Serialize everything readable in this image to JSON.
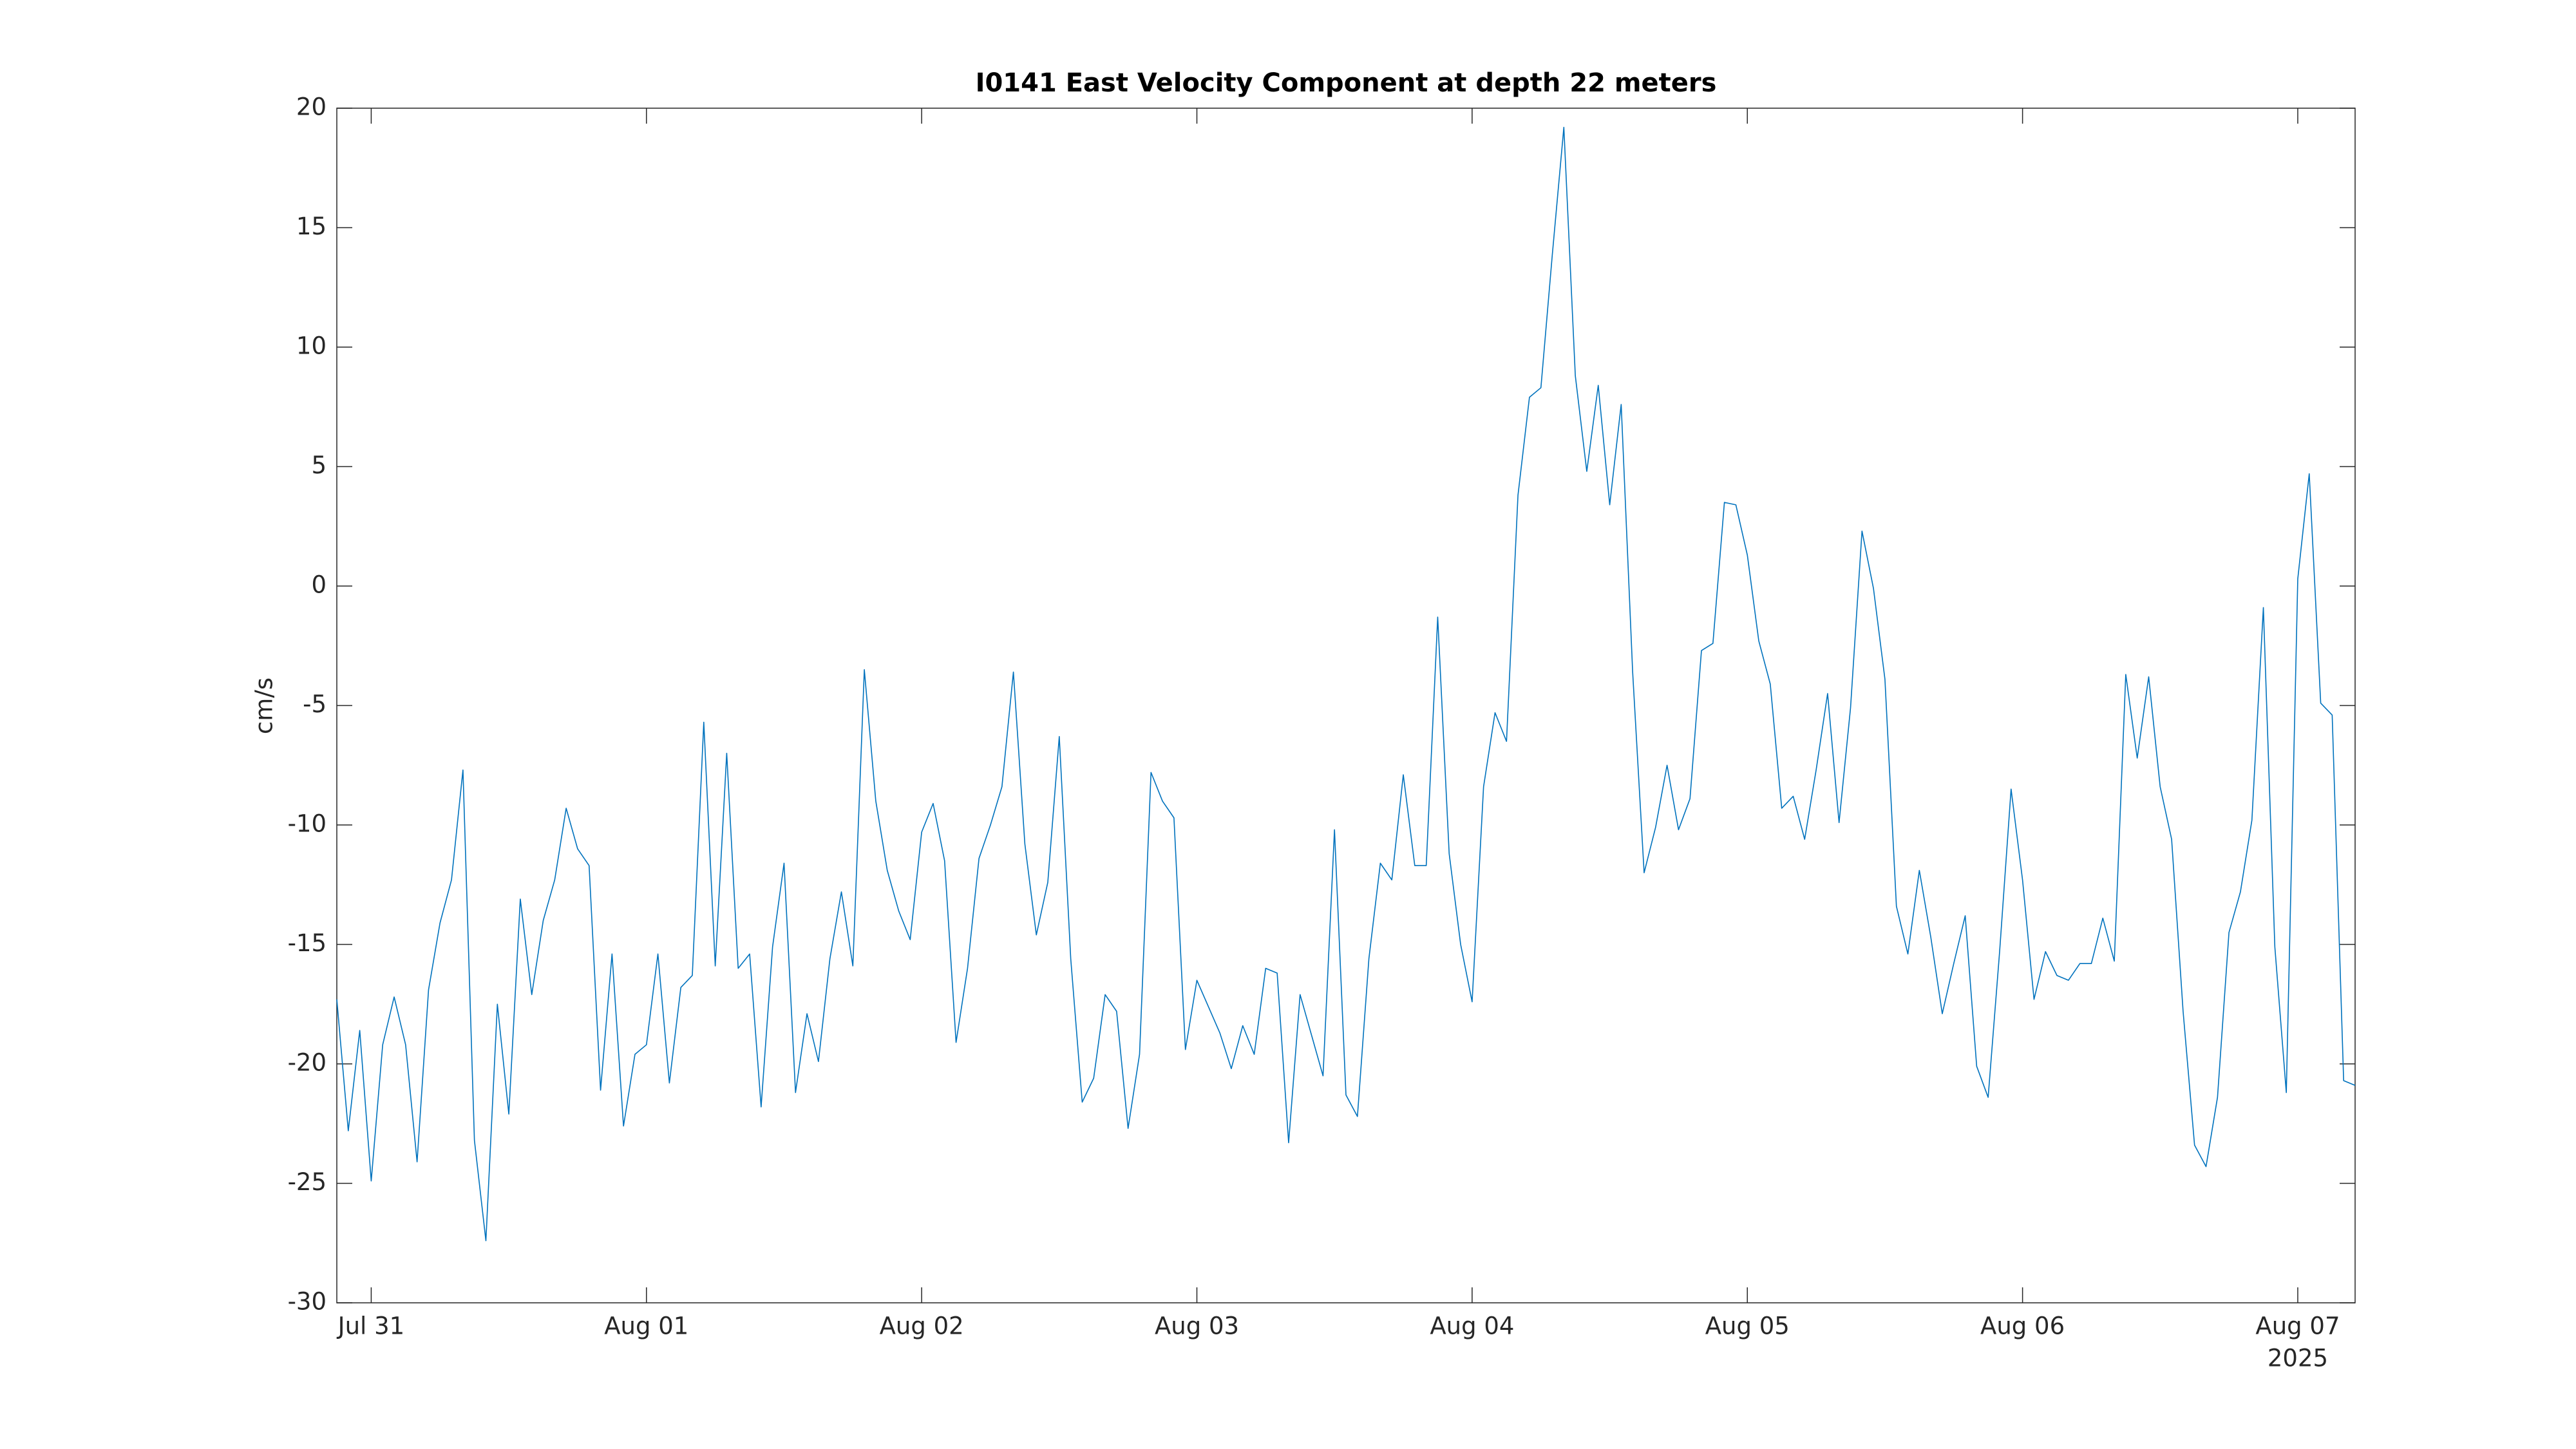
{
  "chart_data": {
    "type": "line",
    "title": "I0141 East Velocity Component at depth 22 meters",
    "y_label": "cm/s",
    "x_year_label": "2025",
    "xlim": [
      "2025-07-30T21:00",
      "2025-08-07T05:00"
    ],
    "xticks": [
      {
        "value": "2025-07-31T00:00",
        "label": "Jul 31"
      },
      {
        "value": "2025-08-01T00:00",
        "label": "Aug 01"
      },
      {
        "value": "2025-08-02T00:00",
        "label": "Aug 02"
      },
      {
        "value": "2025-08-03T00:00",
        "label": "Aug 03"
      },
      {
        "value": "2025-08-04T00:00",
        "label": "Aug 04"
      },
      {
        "value": "2025-08-05T00:00",
        "label": "Aug 05"
      },
      {
        "value": "2025-08-06T00:00",
        "label": "Aug 06"
      },
      {
        "value": "2025-08-07T00:00",
        "label": "Aug 07"
      }
    ],
    "ylim": [
      -30,
      20
    ],
    "yticks": [
      -30,
      -25,
      -20,
      -15,
      -10,
      -5,
      0,
      5,
      10,
      15,
      20
    ],
    "grid": false,
    "x": [
      "2025-07-30T21:00",
      "2025-07-30T22:00",
      "2025-07-30T23:00",
      "2025-07-31T00:00",
      "2025-07-31T01:00",
      "2025-07-31T02:00",
      "2025-07-31T03:00",
      "2025-07-31T04:00",
      "2025-07-31T05:00",
      "2025-07-31T06:00",
      "2025-07-31T07:00",
      "2025-07-31T08:00",
      "2025-07-31T09:00",
      "2025-07-31T10:00",
      "2025-07-31T11:00",
      "2025-07-31T12:00",
      "2025-07-31T13:00",
      "2025-07-31T14:00",
      "2025-07-31T15:00",
      "2025-07-31T16:00",
      "2025-07-31T17:00",
      "2025-07-31T18:00",
      "2025-07-31T19:00",
      "2025-07-31T20:00",
      "2025-07-31T21:00",
      "2025-07-31T22:00",
      "2025-07-31T23:00",
      "2025-08-01T00:00",
      "2025-08-01T01:00",
      "2025-08-01T02:00",
      "2025-08-01T03:00",
      "2025-08-01T04:00",
      "2025-08-01T05:00",
      "2025-08-01T06:00",
      "2025-08-01T07:00",
      "2025-08-01T08:00",
      "2025-08-01T09:00",
      "2025-08-01T10:00",
      "2025-08-01T11:00",
      "2025-08-01T12:00",
      "2025-08-01T13:00",
      "2025-08-01T14:00",
      "2025-08-01T15:00",
      "2025-08-01T16:00",
      "2025-08-01T17:00",
      "2025-08-01T18:00",
      "2025-08-01T19:00",
      "2025-08-01T20:00",
      "2025-08-01T21:00",
      "2025-08-01T22:00",
      "2025-08-01T23:00",
      "2025-08-02T00:00",
      "2025-08-02T01:00",
      "2025-08-02T02:00",
      "2025-08-02T03:00",
      "2025-08-02T04:00",
      "2025-08-02T05:00",
      "2025-08-02T06:00",
      "2025-08-02T07:00",
      "2025-08-02T08:00",
      "2025-08-02T09:00",
      "2025-08-02T10:00",
      "2025-08-02T11:00",
      "2025-08-02T12:00",
      "2025-08-02T13:00",
      "2025-08-02T14:00",
      "2025-08-02T15:00",
      "2025-08-02T16:00",
      "2025-08-02T17:00",
      "2025-08-02T18:00",
      "2025-08-02T19:00",
      "2025-08-02T20:00",
      "2025-08-02T21:00",
      "2025-08-02T22:00",
      "2025-08-02T23:00",
      "2025-08-03T00:00",
      "2025-08-03T01:00",
      "2025-08-03T02:00",
      "2025-08-03T03:00",
      "2025-08-03T04:00",
      "2025-08-03T05:00",
      "2025-08-03T06:00",
      "2025-08-03T07:00",
      "2025-08-03T08:00",
      "2025-08-03T09:00",
      "2025-08-03T10:00",
      "2025-08-03T11:00",
      "2025-08-03T12:00",
      "2025-08-03T13:00",
      "2025-08-03T14:00",
      "2025-08-03T15:00",
      "2025-08-03T16:00",
      "2025-08-03T17:00",
      "2025-08-03T18:00",
      "2025-08-03T19:00",
      "2025-08-03T20:00",
      "2025-08-03T21:00",
      "2025-08-03T22:00",
      "2025-08-03T23:00",
      "2025-08-04T00:00",
      "2025-08-04T01:00",
      "2025-08-04T02:00",
      "2025-08-04T03:00",
      "2025-08-04T04:00",
      "2025-08-04T05:00",
      "2025-08-04T06:00",
      "2025-08-04T07:00",
      "2025-08-04T08:00",
      "2025-08-04T09:00",
      "2025-08-04T10:00",
      "2025-08-04T11:00",
      "2025-08-04T12:00",
      "2025-08-04T13:00",
      "2025-08-04T14:00",
      "2025-08-04T15:00",
      "2025-08-04T16:00",
      "2025-08-04T17:00",
      "2025-08-04T18:00",
      "2025-08-04T19:00",
      "2025-08-04T20:00",
      "2025-08-04T21:00",
      "2025-08-04T22:00",
      "2025-08-04T23:00",
      "2025-08-05T00:00",
      "2025-08-05T01:00",
      "2025-08-05T02:00",
      "2025-08-05T03:00",
      "2025-08-05T04:00",
      "2025-08-05T05:00",
      "2025-08-05T06:00",
      "2025-08-05T07:00",
      "2025-08-05T08:00",
      "2025-08-05T09:00",
      "2025-08-05T10:00",
      "2025-08-05T11:00",
      "2025-08-05T12:00",
      "2025-08-05T13:00",
      "2025-08-05T14:00",
      "2025-08-05T15:00",
      "2025-08-05T16:00",
      "2025-08-05T17:00",
      "2025-08-05T18:00",
      "2025-08-05T19:00",
      "2025-08-05T20:00",
      "2025-08-05T21:00",
      "2025-08-05T22:00",
      "2025-08-05T23:00",
      "2025-08-06T00:00",
      "2025-08-06T01:00",
      "2025-08-06T02:00",
      "2025-08-06T03:00",
      "2025-08-06T04:00",
      "2025-08-06T05:00",
      "2025-08-06T06:00",
      "2025-08-06T07:00",
      "2025-08-06T08:00",
      "2025-08-06T09:00",
      "2025-08-06T10:00",
      "2025-08-06T11:00",
      "2025-08-06T12:00",
      "2025-08-06T13:00",
      "2025-08-06T14:00",
      "2025-08-06T15:00",
      "2025-08-06T16:00",
      "2025-08-06T17:00",
      "2025-08-06T18:00",
      "2025-08-06T19:00",
      "2025-08-06T20:00",
      "2025-08-06T21:00",
      "2025-08-06T22:00",
      "2025-08-06T23:00",
      "2025-08-07T00:00",
      "2025-08-07T01:00",
      "2025-08-07T02:00",
      "2025-08-07T03:00",
      "2025-08-07T04:00",
      "2025-08-07T05:00"
    ],
    "series": [
      {
        "color": "#0072bd",
        "values": [
          -17.3,
          -22.8,
          -18.6,
          -24.9,
          -19.2,
          -17.2,
          -19.2,
          -24.1,
          -16.9,
          -14.1,
          -12.3,
          -7.7,
          -23.2,
          -27.4,
          -17.5,
          -22.1,
          -13.1,
          -17.1,
          -14.0,
          -12.3,
          -9.3,
          -11.0,
          -11.7,
          -21.1,
          -15.4,
          -22.6,
          -19.6,
          -19.2,
          -15.4,
          -20.8,
          -16.8,
          -16.3,
          -5.7,
          -15.9,
          -7.0,
          -16.0,
          -15.4,
          -21.8,
          -15.1,
          -11.6,
          -21.2,
          -17.9,
          -19.9,
          -15.6,
          -12.8,
          -15.9,
          -3.5,
          -9.0,
          -11.9,
          -13.6,
          -14.8,
          -10.3,
          -9.1,
          -11.5,
          -19.1,
          -16.0,
          -11.4,
          -10.0,
          -8.4,
          -3.6,
          -10.8,
          -14.6,
          -12.4,
          -6.3,
          -15.6,
          -21.6,
          -20.6,
          -17.1,
          -17.8,
          -22.7,
          -19.6,
          -7.8,
          -9.0,
          -9.7,
          -19.4,
          -16.5,
          -17.6,
          -18.7,
          -20.2,
          -18.4,
          -19.6,
          -16.0,
          -16.2,
          -23.3,
          -17.1,
          -18.8,
          -20.5,
          -10.2,
          -21.3,
          -22.2,
          -15.6,
          -11.6,
          -12.3,
          -7.9,
          -11.7,
          -11.7,
          -1.3,
          -11.2,
          -15.0,
          -17.4,
          -8.4,
          -5.3,
          -6.5,
          3.8,
          7.9,
          8.3,
          13.9,
          19.2,
          8.8,
          4.8,
          8.4,
          3.4,
          7.6,
          -3.6,
          -12.0,
          -10.1,
          -7.5,
          -10.2,
          -8.9,
          -2.7,
          -2.4,
          3.5,
          3.4,
          1.3,
          -2.3,
          -4.1,
          -9.3,
          -8.8,
          -10.6,
          -7.7,
          -4.5,
          -9.9,
          -5.1,
          2.3,
          -0.1,
          -3.9,
          -13.4,
          -15.4,
          -11.9,
          -14.7,
          -17.9,
          -15.8,
          -13.8,
          -20.1,
          -21.4,
          -15.3,
          -8.5,
          -12.3,
          -17.3,
          -15.3,
          -16.3,
          -16.5,
          -15.8,
          -15.8,
          -13.9,
          -15.7,
          -3.7,
          -7.2,
          -3.8,
          -8.4,
          -10.6,
          -17.8,
          -23.4,
          -24.3,
          -21.4,
          -14.5,
          -12.8,
          -9.8,
          -0.9,
          -15.1,
          -21.2,
          0.3,
          4.7,
          -4.9,
          -5.4,
          -20.7,
          -20.9
        ]
      }
    ]
  }
}
